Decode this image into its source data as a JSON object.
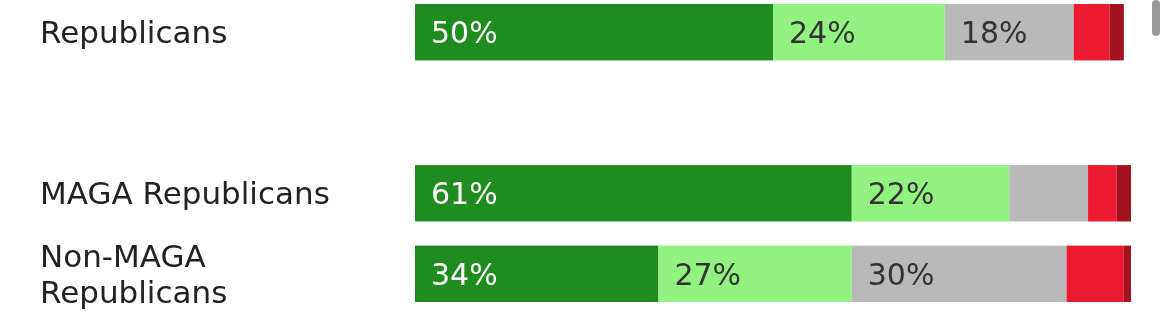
{
  "chart_data": {
    "type": "bar",
    "orientation": "horizontal",
    "stacked": true,
    "xlim": [
      0,
      100
    ],
    "categories": [
      "Republicans",
      null,
      "MAGA Republicans",
      "Non-MAGA Republicans"
    ],
    "series": [
      {
        "color": "#1e8c1e",
        "values": [
          50,
          null,
          61,
          34
        ],
        "value_labels": [
          "50%",
          null,
          "61%",
          "34%"
        ]
      },
      {
        "color": "#92f280",
        "values": [
          24,
          null,
          22,
          27
        ],
        "value_labels": [
          "24%",
          null,
          "22%",
          "27%"
        ]
      },
      {
        "color": "#b9b9b9",
        "values": [
          18,
          null,
          11,
          30
        ],
        "value_labels": [
          "18%",
          null,
          null,
          "30%"
        ]
      },
      {
        "color": "#ec1a30",
        "values": [
          5,
          null,
          4,
          8
        ],
        "value_labels": [
          null,
          null,
          null,
          null
        ]
      },
      {
        "color": "#a3121f",
        "values": [
          2,
          null,
          2,
          1
        ],
        "value_labels": [
          null,
          null,
          null,
          null
        ]
      }
    ]
  }
}
